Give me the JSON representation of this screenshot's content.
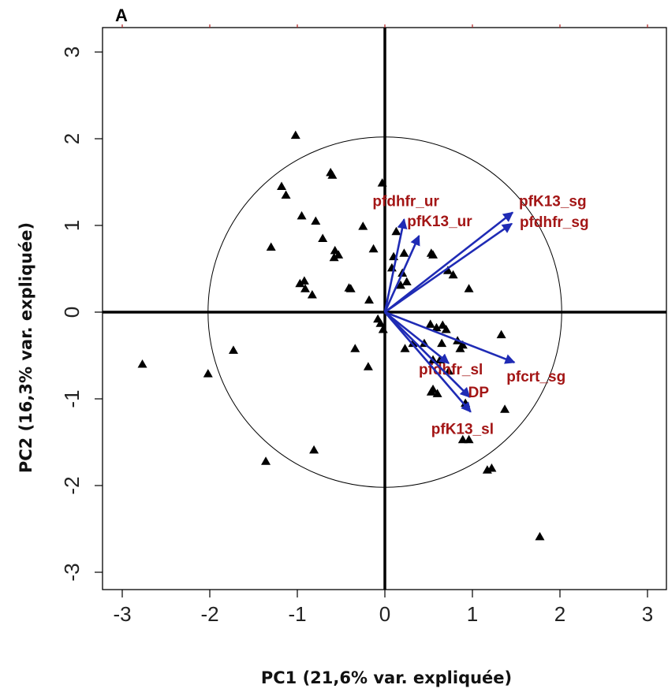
{
  "panel_label": "A",
  "colors": {
    "arrow": "#1f2bb5",
    "arrow_label": "#a31515",
    "points": "#000000"
  },
  "chart_data": {
    "type": "scatter",
    "title": "",
    "xlabel": "PC1 (21,6% var. expliquée)",
    "ylabel": "PC2 (16,3% var. expliquée)",
    "xlim": [
      -3.3,
      3.3
    ],
    "ylim": [
      -3.2,
      3.3
    ],
    "xticks": [
      -3,
      -2,
      -1,
      0,
      1,
      2,
      3
    ],
    "yticks": [
      -3,
      -2,
      -1,
      0,
      1,
      2,
      3
    ],
    "correlation_circle_radius": 2.02,
    "points": [
      {
        "x": -1.02,
        "y": 2.04
      },
      {
        "x": -0.62,
        "y": 1.61
      },
      {
        "x": -0.6,
        "y": 1.58
      },
      {
        "x": -1.18,
        "y": 1.45
      },
      {
        "x": -1.13,
        "y": 1.35
      },
      {
        "x": -0.03,
        "y": 1.49
      },
      {
        "x": -0.95,
        "y": 1.11
      },
      {
        "x": -0.79,
        "y": 1.05
      },
      {
        "x": -0.25,
        "y": 0.99
      },
      {
        "x": -0.71,
        "y": 0.85
      },
      {
        "x": -0.13,
        "y": 0.73
      },
      {
        "x": -1.3,
        "y": 0.75
      },
      {
        "x": -0.57,
        "y": 0.71
      },
      {
        "x": -0.58,
        "y": 0.63
      },
      {
        "x": -0.53,
        "y": 0.66
      },
      {
        "x": 0.1,
        "y": 0.64
      },
      {
        "x": 0.22,
        "y": 0.68
      },
      {
        "x": 0.53,
        "y": 0.68
      },
      {
        "x": 0.55,
        "y": 0.66
      },
      {
        "x": 0.08,
        "y": 0.51
      },
      {
        "x": 0.2,
        "y": 0.45
      },
      {
        "x": 0.25,
        "y": 0.35
      },
      {
        "x": 0.18,
        "y": 0.31
      },
      {
        "x": 0.72,
        "y": 0.48
      },
      {
        "x": 0.78,
        "y": 0.43
      },
      {
        "x": 0.96,
        "y": 0.27
      },
      {
        "x": 0.13,
        "y": 0.93
      },
      {
        "x": -0.92,
        "y": 0.36
      },
      {
        "x": -0.97,
        "y": 0.33
      },
      {
        "x": -0.91,
        "y": 0.27
      },
      {
        "x": -0.83,
        "y": 0.2
      },
      {
        "x": -0.41,
        "y": 0.28
      },
      {
        "x": -0.39,
        "y": 0.27
      },
      {
        "x": -0.18,
        "y": 0.14
      },
      {
        "x": -0.08,
        "y": -0.08
      },
      {
        "x": -0.05,
        "y": -0.13
      },
      {
        "x": -0.02,
        "y": -0.2
      },
      {
        "x": 0.52,
        "y": -0.14
      },
      {
        "x": 0.59,
        "y": -0.18
      },
      {
        "x": 0.66,
        "y": -0.15
      },
      {
        "x": 0.7,
        "y": -0.2
      },
      {
        "x": 0.83,
        "y": -0.33
      },
      {
        "x": 0.89,
        "y": -0.38
      },
      {
        "x": 0.86,
        "y": -0.42
      },
      {
        "x": 0.32,
        "y": -0.36
      },
      {
        "x": 0.45,
        "y": -0.36
      },
      {
        "x": 0.65,
        "y": -0.36
      },
      {
        "x": 1.33,
        "y": -0.26
      },
      {
        "x": -0.34,
        "y": -0.42
      },
      {
        "x": -0.19,
        "y": -0.63
      },
      {
        "x": 0.23,
        "y": -0.42
      },
      {
        "x": 0.55,
        "y": -0.55
      },
      {
        "x": 0.63,
        "y": -0.55
      },
      {
        "x": 0.73,
        "y": -0.68
      },
      {
        "x": 0.53,
        "y": -0.92
      },
      {
        "x": 0.6,
        "y": -0.94
      },
      {
        "x": 0.55,
        "y": -0.89
      },
      {
        "x": 0.92,
        "y": -1.05
      },
      {
        "x": 1.37,
        "y": -1.12
      },
      {
        "x": 0.89,
        "y": -1.47
      },
      {
        "x": 0.96,
        "y": -1.47
      },
      {
        "x": 1.17,
        "y": -1.82
      },
      {
        "x": 1.22,
        "y": -1.8
      },
      {
        "x": 1.77,
        "y": -2.59
      },
      {
        "x": -2.77,
        "y": -0.6
      },
      {
        "x": -2.02,
        "y": -0.71
      },
      {
        "x": -1.73,
        "y": -0.44
      },
      {
        "x": -1.36,
        "y": -1.72
      },
      {
        "x": -0.81,
        "y": -1.59
      }
    ],
    "loadings": [
      {
        "name": "pfdhfr_ur",
        "x": 0.22,
        "y": 1.07
      },
      {
        "name": "pfK13_ur",
        "x": 0.39,
        "y": 0.88
      },
      {
        "name": "pfK13_sg",
        "x": 1.46,
        "y": 1.15
      },
      {
        "name": "pfdhfr_sg",
        "x": 1.45,
        "y": 1.02
      },
      {
        "name": "pfcrt_sg",
        "x": 1.48,
        "y": -0.58
      },
      {
        "name": "pfdhfr_sl",
        "x": 0.73,
        "y": -0.59
      },
      {
        "name": "DP",
        "x": 0.97,
        "y": -0.98
      },
      {
        "name": "pfK13_sl",
        "x": 0.98,
        "y": -1.15
      }
    ]
  }
}
